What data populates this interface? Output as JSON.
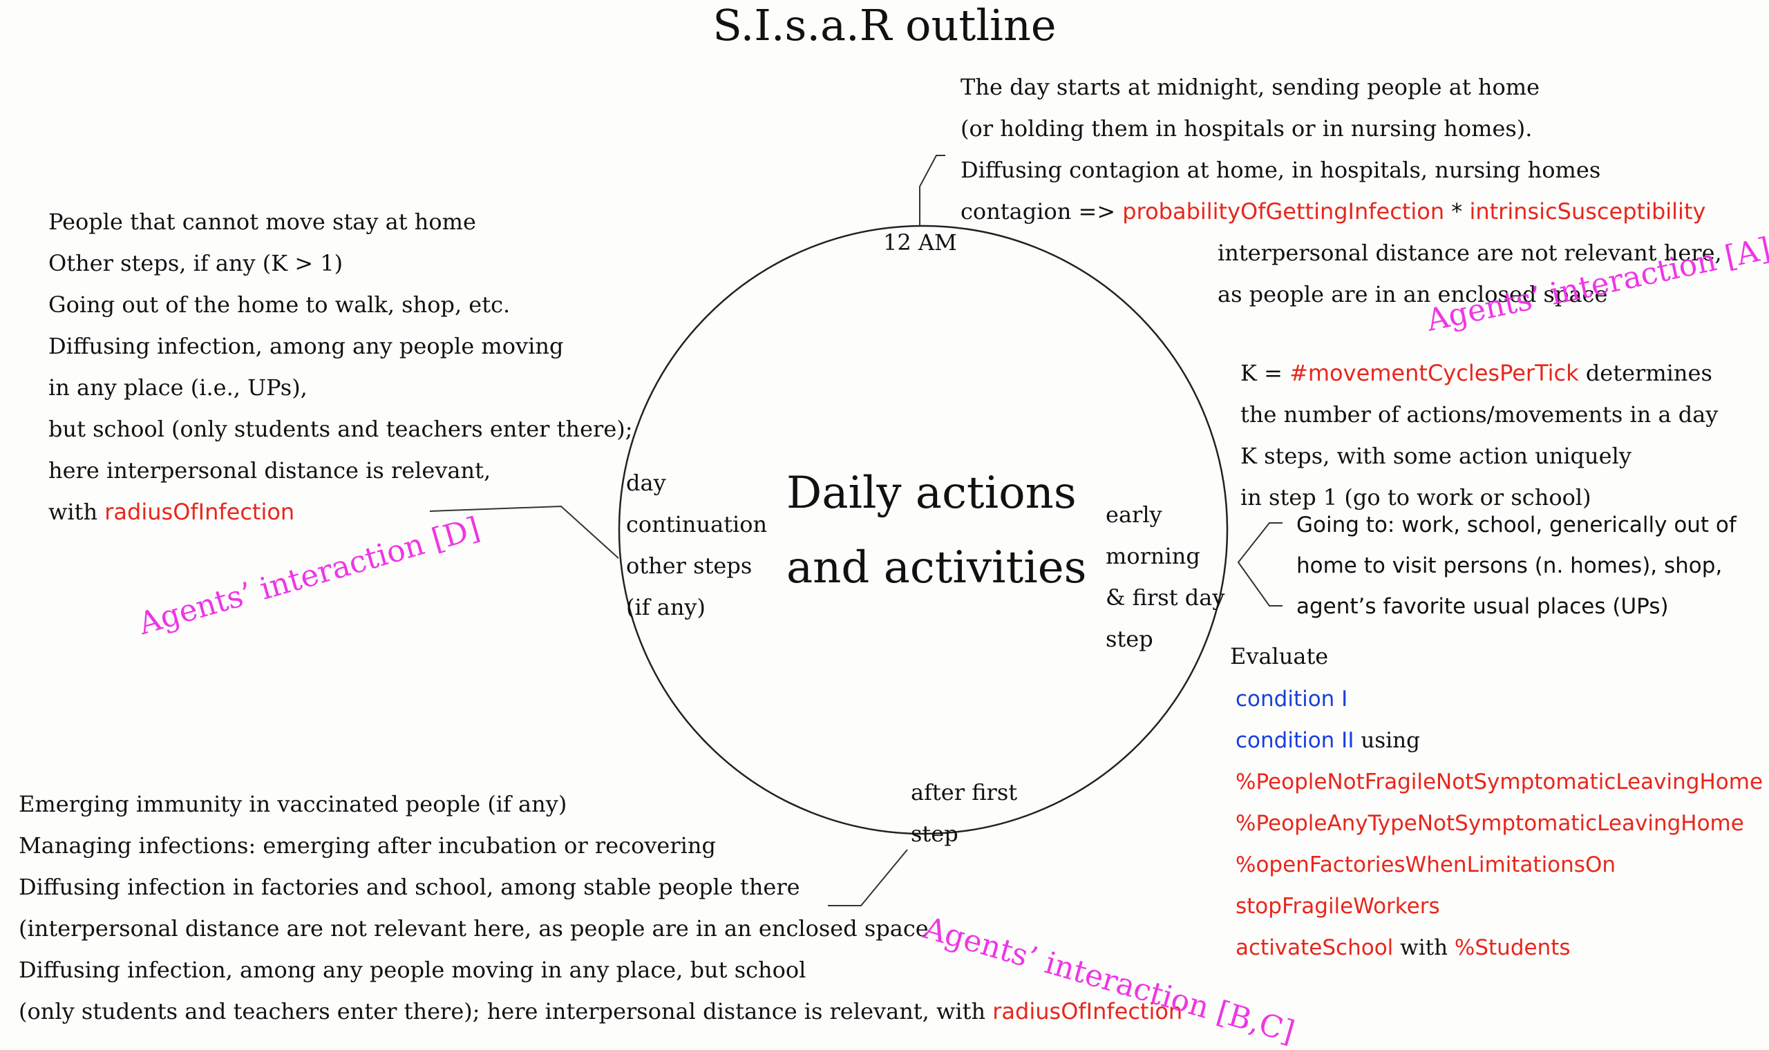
{
  "title": "S.I.s.a.R outline",
  "clock": {
    "top_label": "12 AM",
    "center_lines": [
      "Daily actions",
      "and activities"
    ],
    "left_phase": [
      "day",
      "continuation",
      "other steps",
      "(if any)"
    ],
    "right_phase": [
      "early",
      "morning",
      "& first day",
      "step"
    ],
    "bottom_phase": [
      "after first",
      "step"
    ]
  },
  "midnight_text": {
    "lines": [
      "The day starts at midnight, sending people at home",
      "(or holding them in hospitals or in nursing homes).",
      "Diffusing contagion at home, in hospitals, nursing homes"
    ],
    "contagion_prefix": "contagion =>",
    "contagion_param1": "probabilityOfGettingInfection",
    "contagion_op": "*",
    "contagion_param2": "intrinsicSusceptibility",
    "note_lines": [
      "interpersonal distance are not relevant here,",
      "as people are in an enclosed space"
    ]
  },
  "k_text": {
    "k_prefix": "K =",
    "k_param": "#movementCyclesPerTick",
    "k_suffix": "determines",
    "lines": [
      "the number of actions/movements in a day",
      "K steps, with some action uniquely",
      "in step 1 (go to work or school)"
    ]
  },
  "going_to": [
    "Going to: work, school, generically out of",
    "home to visit persons (n. homes), shop,",
    "agent’s favorite usual places (UPs)"
  ],
  "evaluate": {
    "label": "Evaluate",
    "cond1": "condition I",
    "cond2": "condition II",
    "using": "using",
    "params": [
      "%PeopleNotFragileNotSymptomaticLeavingHome",
      "%PeopleAnyTypeNotSymptomaticLeavingHome",
      "%openFactoriesWhenLimitationsOn",
      "stopFragileWorkers"
    ],
    "school_param": "activateSchool",
    "with_word": "with",
    "students_param": "%Students"
  },
  "left_text": {
    "lines": [
      "People that cannot move stay at home",
      "Other steps, if any (K > 1)",
      "Going out of the home to walk, shop, etc.",
      "Diffusing infection, among any people moving",
      "in any place (i.e., UPs),",
      "but school (only students and teachers enter there);",
      "here interpersonal distance is relevant,"
    ],
    "with_word": "with",
    "param": "radiusOfInfection"
  },
  "bottom_text": {
    "lines": [
      "Emerging immunity in vaccinated people (if any)",
      "Managing infections: emerging after incubation or recovering",
      "Diffusing infection in factories and school, among stable people there",
      "(interpersonal distance are not relevant here, as people are in an enclosed space",
      "Diffusing infection, among any people moving in any place, but school"
    ],
    "last_prefix": "(only students and teachers enter there); here interpersonal distance is relevant, with",
    "param": "radiusOfInfection"
  },
  "agents": {
    "A": "Agents’ interaction [A]",
    "D": "Agents’ interaction [D]",
    "BC": "Agents’ interaction [B,C]"
  },
  "colors": {
    "parameter": "#e8261c",
    "condition": "#1a3fdc",
    "interaction": "#ee36e6"
  }
}
